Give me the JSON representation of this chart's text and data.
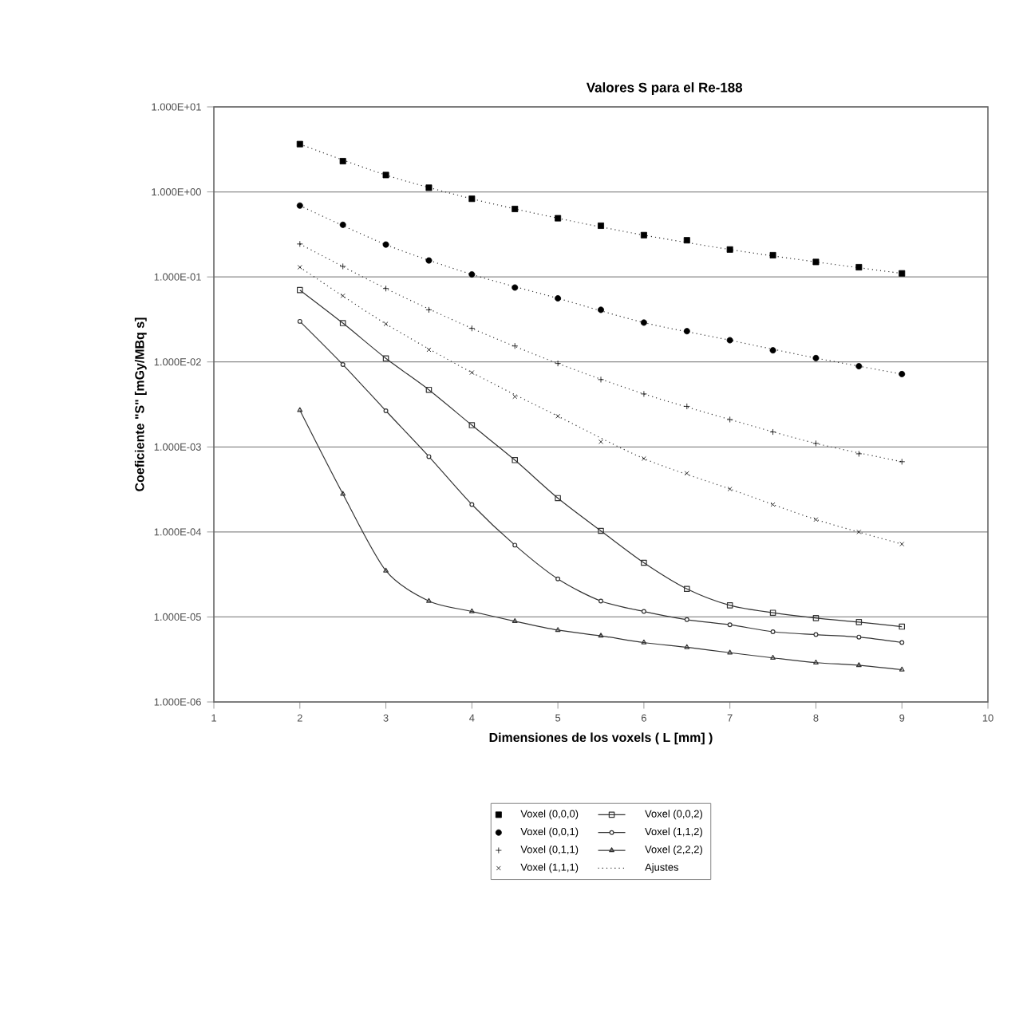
{
  "chart_data": {
    "type": "scatter",
    "title": "Valores S para el Re-188",
    "xlabel": "Dimensiones de los voxels  ( L [mm] )",
    "ylabel": "Coeficiente \"S\" [mGy/MBq s]",
    "x": [
      2,
      2.5,
      3,
      3.5,
      4,
      4.5,
      5,
      5.5,
      6,
      6.5,
      7,
      7.5,
      8,
      8.5,
      9
    ],
    "series": [
      {
        "name": "Voxel (0,0,0)",
        "marker": "square",
        "color": "#000000",
        "values": [
          3.65,
          2.3,
          1.58,
          1.12,
          0.83,
          0.63,
          0.49,
          0.4,
          0.31,
          0.27,
          0.21,
          0.18,
          0.15,
          0.13,
          0.11
        ]
      },
      {
        "name": "Voxel (0,0,1)",
        "marker": "circle",
        "color": "#000000",
        "values": [
          0.69,
          0.41,
          0.24,
          0.156,
          0.107,
          0.075,
          0.056,
          0.041,
          0.029,
          0.023,
          0.018,
          0.0137,
          0.0111,
          0.0089,
          0.0072
        ]
      },
      {
        "name": "Voxel (0,1,1)",
        "marker": "plus",
        "color": "#000000",
        "values": [
          0.244,
          0.133,
          0.073,
          0.041,
          0.0248,
          0.0154,
          0.0096,
          0.0062,
          0.0042,
          0.003,
          0.0021,
          0.0015,
          0.0011,
          0.00083,
          0.00067
        ]
      },
      {
        "name": "Voxel (1,1,1)",
        "marker": "cross",
        "color": "#000000",
        "values": [
          0.13,
          0.06,
          0.028,
          0.0139,
          0.0075,
          0.0039,
          0.0023,
          0.00115,
          0.00073,
          0.00049,
          0.00032,
          0.00021,
          0.00014,
          0.0001,
          7.2e-05
        ]
      },
      {
        "name": "Voxel (0,0,2)",
        "type": "line",
        "marker": "square",
        "line_style": "solid",
        "color": "#333333",
        "values": [
          0.07,
          0.0286,
          0.011,
          0.0047,
          0.0018,
          0.0007,
          0.00025,
          0.000103,
          4.34e-05,
          2.14e-05,
          1.37e-05,
          1.12e-05,
          9.7e-06,
          8.7e-06,
          7.7e-06
        ]
      },
      {
        "name": "Voxel (1,1,2)",
        "type": "line",
        "marker": "circle",
        "line_style": "solid",
        "color": "#333333",
        "values": [
          0.03,
          0.0093,
          0.00266,
          0.00077,
          0.00021,
          7e-05,
          2.8e-05,
          1.54e-05,
          1.16e-05,
          9.3e-06,
          8.1e-06,
          6.7e-06,
          6.2e-06,
          5.8e-06,
          5e-06
        ]
      },
      {
        "name": "Voxel (2,2,2)",
        "type": "line",
        "marker": "triangle",
        "line_style": "solid",
        "color": "#333333",
        "values": [
          0.0027,
          0.00028,
          3.5e-05,
          1.54e-05,
          1.16e-05,
          8.9e-06,
          7e-06,
          6e-06,
          5e-06,
          4.4e-06,
          3.8e-06,
          3.3e-06,
          2.9e-06,
          2.7e-06,
          2.4e-06
        ]
      },
      {
        "name": "Ajustes",
        "type": "line",
        "marker": "none",
        "line_style": "dotted",
        "color": "#333333",
        "x": [
          2,
          3,
          4,
          5,
          6,
          7,
          8,
          9
        ],
        "values": [
          3.65,
          1.58,
          0.83,
          0.49,
          0.31,
          0.21,
          0.15,
          0.11
        ]
      },
      {
        "type": "line",
        "marker": "none",
        "line_style": "dotted",
        "color": "#333333",
        "x": [
          2,
          3,
          4,
          5,
          6,
          7,
          8,
          9
        ],
        "values": [
          0.69,
          0.24,
          0.107,
          0.056,
          0.029,
          0.018,
          0.0111,
          0.0072
        ]
      },
      {
        "type": "line",
        "marker": "none",
        "line_style": "dotted",
        "color": "#333333",
        "x": [
          2,
          3,
          4,
          5,
          6,
          7,
          8,
          9
        ],
        "values": [
          0.244,
          0.073,
          0.0248,
          0.0096,
          0.0042,
          0.0021,
          0.0011,
          0.00067
        ]
      },
      {
        "type": "line",
        "marker": "none",
        "line_style": "dotted",
        "color": "#333333",
        "x": [
          2,
          3,
          4,
          5,
          6,
          7,
          8,
          9
        ],
        "values": [
          0.13,
          0.028,
          0.0075,
          0.0023,
          0.00073,
          0.00032,
          0.00014,
          7.2e-05
        ]
      }
    ],
    "xlim": [
      1,
      10
    ],
    "xticks": [
      1,
      2,
      3,
      4,
      5,
      6,
      7,
      8,
      9,
      10
    ],
    "ylim": [
      1e-06,
      10
    ],
    "log": "y",
    "yticks": [
      {
        "value": 1e-06,
        "label": "1.000E-06"
      },
      {
        "value": 1e-05,
        "label": "1.000E-05"
      },
      {
        "value": 0.0001,
        "label": "1.000E-04"
      },
      {
        "value": 0.001,
        "label": "1.000E-03"
      },
      {
        "value": 0.01,
        "label": "1.000E-02"
      },
      {
        "value": 0.1,
        "label": "1.000E-01"
      },
      {
        "value": 1,
        "label": "1.000E+00"
      },
      {
        "value": 10,
        "label": "1.000E+01"
      }
    ],
    "grid": "y",
    "legend": "bottom"
  }
}
